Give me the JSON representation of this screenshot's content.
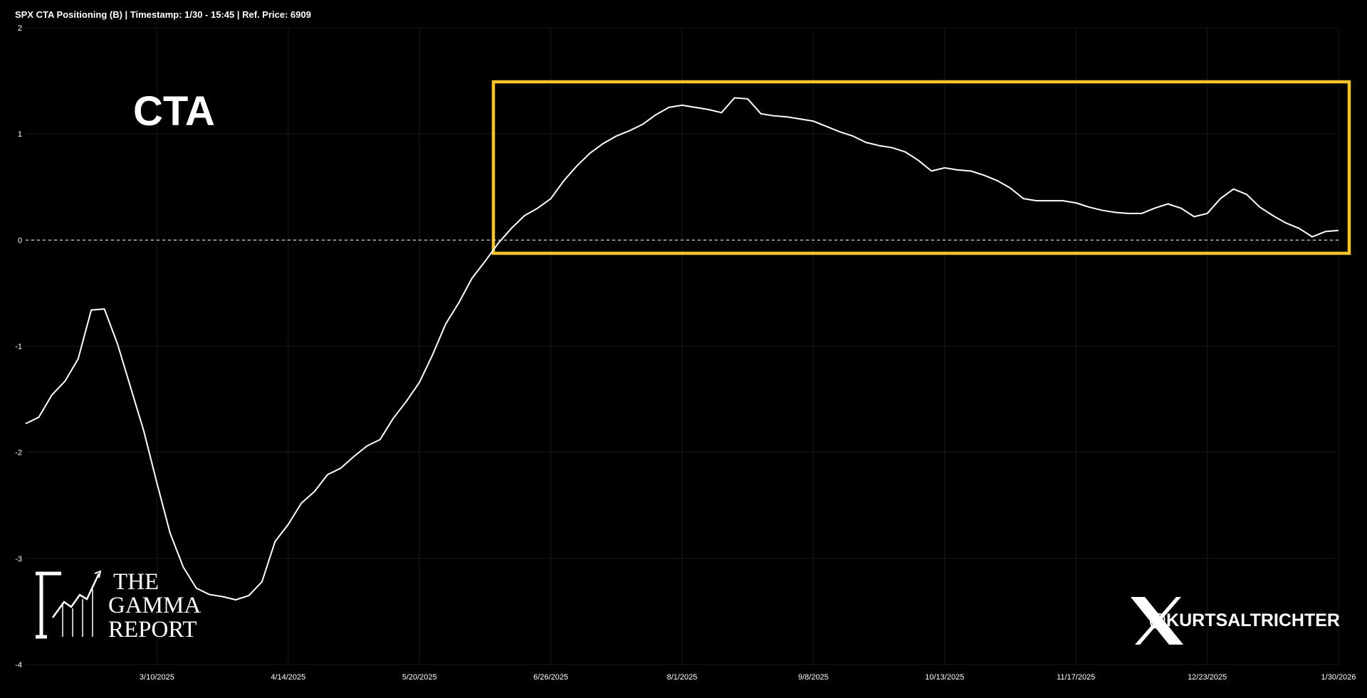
{
  "chart_data": {
    "type": "line",
    "title": "SPX CTA Positioning (B) | Timestamp: 1/30 - 15:45  | Ref. Price: 6909",
    "label": "CTA",
    "watermark": [
      "THE",
      "GAMMA",
      "REPORT"
    ],
    "handle": "@KURTSALTRICHTER",
    "color": "#ffffff",
    "grid": true,
    "categories": [
      null,
      null,
      null,
      null,
      null,
      null,
      null,
      null,
      null,
      null,
      "3/10/2025",
      null,
      null,
      null,
      null,
      null,
      null,
      null,
      null,
      null,
      "4/14/2025",
      null,
      null,
      null,
      null,
      null,
      null,
      null,
      null,
      null,
      "5/20/2025",
      null,
      null,
      null,
      null,
      null,
      null,
      null,
      null,
      null,
      "6/26/2025",
      null,
      null,
      null,
      null,
      null,
      null,
      null,
      null,
      null,
      "8/1/2025",
      null,
      null,
      null,
      null,
      null,
      null,
      null,
      null,
      null,
      "9/8/2025",
      null,
      null,
      null,
      null,
      null,
      null,
      null,
      null,
      null,
      "10/13/2025",
      null,
      null,
      null,
      null,
      null,
      null,
      null,
      null,
      null,
      "11/17/2025",
      null,
      null,
      null,
      null,
      null,
      null,
      null,
      null,
      null,
      "12/23/2025",
      null,
      null,
      null,
      null,
      null,
      null,
      null,
      null,
      null,
      "1/30/2026"
    ],
    "values": [
      -1.73,
      -1.67,
      -1.46,
      -1.33,
      -1.12,
      -0.66,
      -0.65,
      -0.98,
      -1.39,
      -1.8,
      -2.29,
      -2.76,
      -3.08,
      -3.28,
      -3.34,
      -3.36,
      -3.39,
      -3.35,
      -3.22,
      -2.84,
      -2.68,
      -2.48,
      -2.37,
      -2.21,
      -2.15,
      -2.04,
      -1.94,
      -1.88,
      -1.68,
      -1.52,
      -1.34,
      -1.08,
      -0.79,
      -0.59,
      -0.36,
      -0.2,
      -0.03,
      0.11,
      0.23,
      0.3,
      0.39,
      0.56,
      0.7,
      0.82,
      0.91,
      0.98,
      1.03,
      1.09,
      1.18,
      1.25,
      1.27,
      1.25,
      1.23,
      1.2,
      1.34,
      1.33,
      1.19,
      1.17,
      1.16,
      1.14,
      1.12,
      1.07,
      1.02,
      0.98,
      0.92,
      0.89,
      0.87,
      0.83,
      0.75,
      0.65,
      0.68,
      0.66,
      0.65,
      0.61,
      0.56,
      0.49,
      0.39,
      0.37,
      0.37,
      0.37,
      0.35,
      0.31,
      0.28,
      0.26,
      0.25,
      0.25,
      0.3,
      0.34,
      0.3,
      0.22,
      0.25,
      0.39,
      0.48,
      0.43,
      0.31,
      0.23,
      0.16,
      0.11,
      0.03,
      0.08,
      0.09
    ],
    "ylim": [
      -4,
      2
    ],
    "yticks": [
      -4,
      -3,
      -2,
      -1,
      0,
      1,
      2
    ]
  }
}
